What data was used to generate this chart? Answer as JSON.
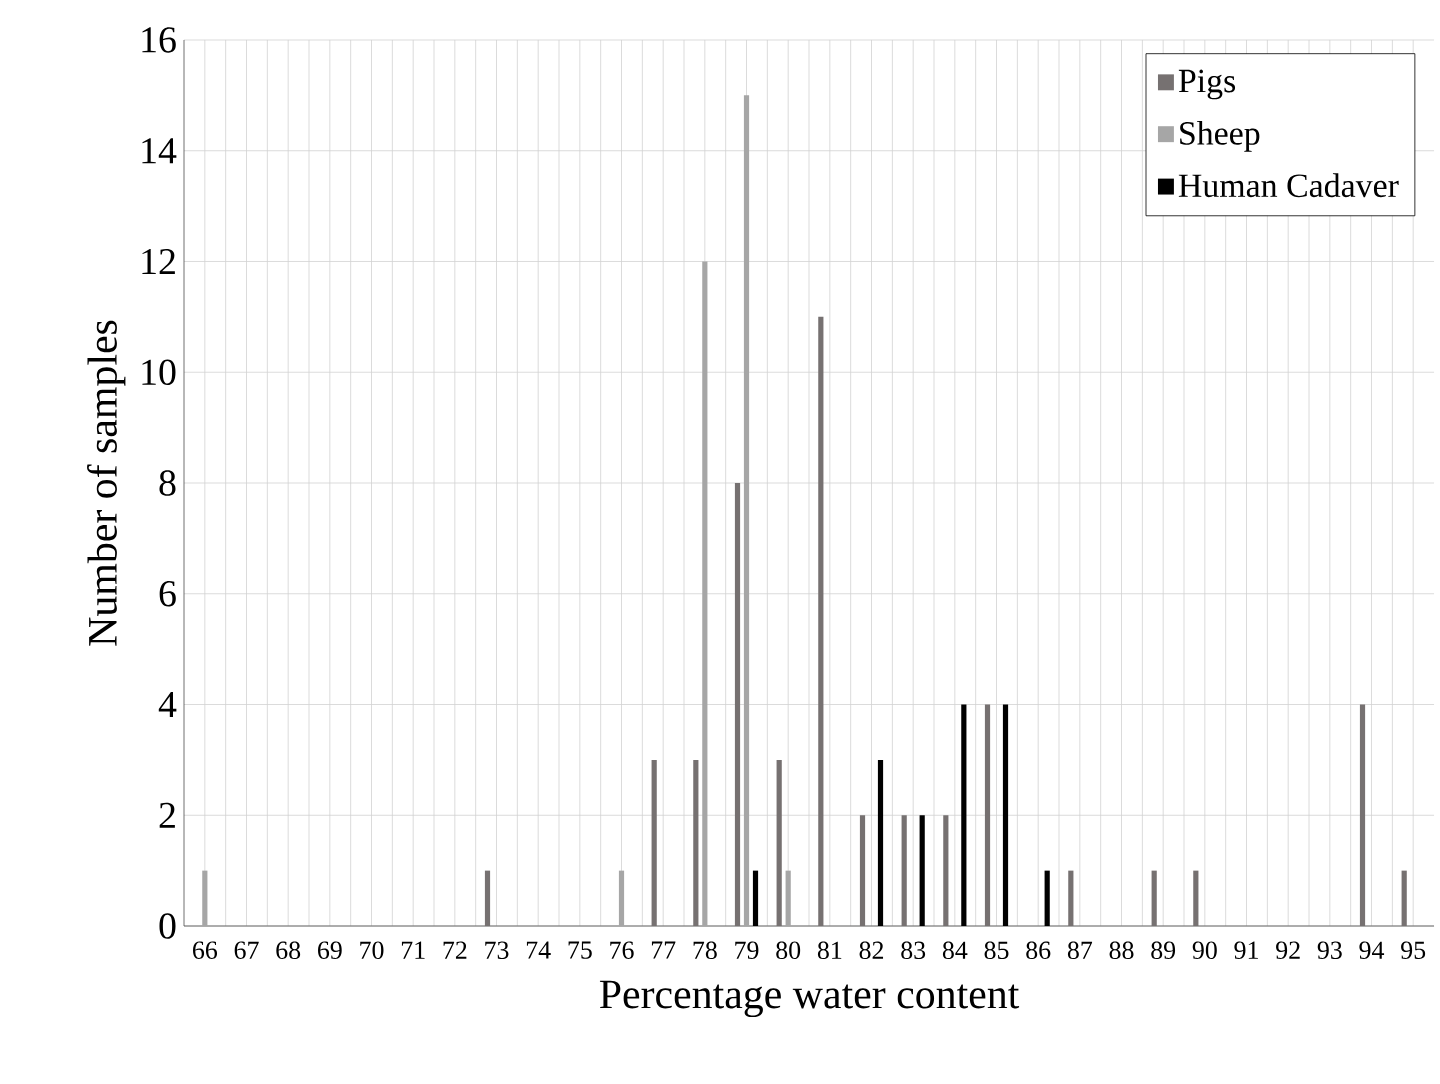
{
  "chart_data": {
    "type": "bar",
    "xlabel": "Percentage water content",
    "ylabel": "Number of samples",
    "categories": [
      "66",
      "67",
      "68",
      "69",
      "70",
      "71",
      "72",
      "73",
      "74",
      "75",
      "76",
      "77",
      "78",
      "79",
      "80",
      "81",
      "82",
      "83",
      "84",
      "85",
      "86",
      "87",
      "88",
      "89",
      "90",
      "91",
      "92",
      "93",
      "94",
      "95"
    ],
    "series": [
      {
        "name": "Pigs",
        "color": "#767171",
        "values": [
          0,
          0,
          0,
          0,
          0,
          0,
          0,
          1,
          0,
          0,
          0,
          3,
          3,
          8,
          3,
          11,
          2,
          2,
          2,
          4,
          0,
          1,
          0,
          1,
          1,
          0,
          0,
          0,
          4,
          1
        ]
      },
      {
        "name": "Sheep",
        "color": "#a6a6a6",
        "values": [
          1,
          0,
          0,
          0,
          0,
          0,
          0,
          0,
          0,
          0,
          1,
          0,
          12,
          15,
          1,
          0,
          0,
          0,
          0,
          0,
          0,
          0,
          0,
          0,
          0,
          0,
          0,
          0,
          0,
          0
        ]
      },
      {
        "name": "Human Cadaver",
        "color": "#000000",
        "values": [
          0,
          0,
          0,
          0,
          0,
          0,
          0,
          0,
          0,
          0,
          0,
          0,
          0,
          1,
          0,
          0,
          3,
          2,
          4,
          4,
          1,
          0,
          0,
          0,
          0,
          0,
          0,
          0,
          0,
          0
        ]
      }
    ],
    "ylim": [
      0,
      16
    ],
    "yticks": [
      0,
      2,
      4,
      6,
      8,
      10,
      12,
      14,
      16
    ],
    "grid": true,
    "legend": "top right"
  }
}
